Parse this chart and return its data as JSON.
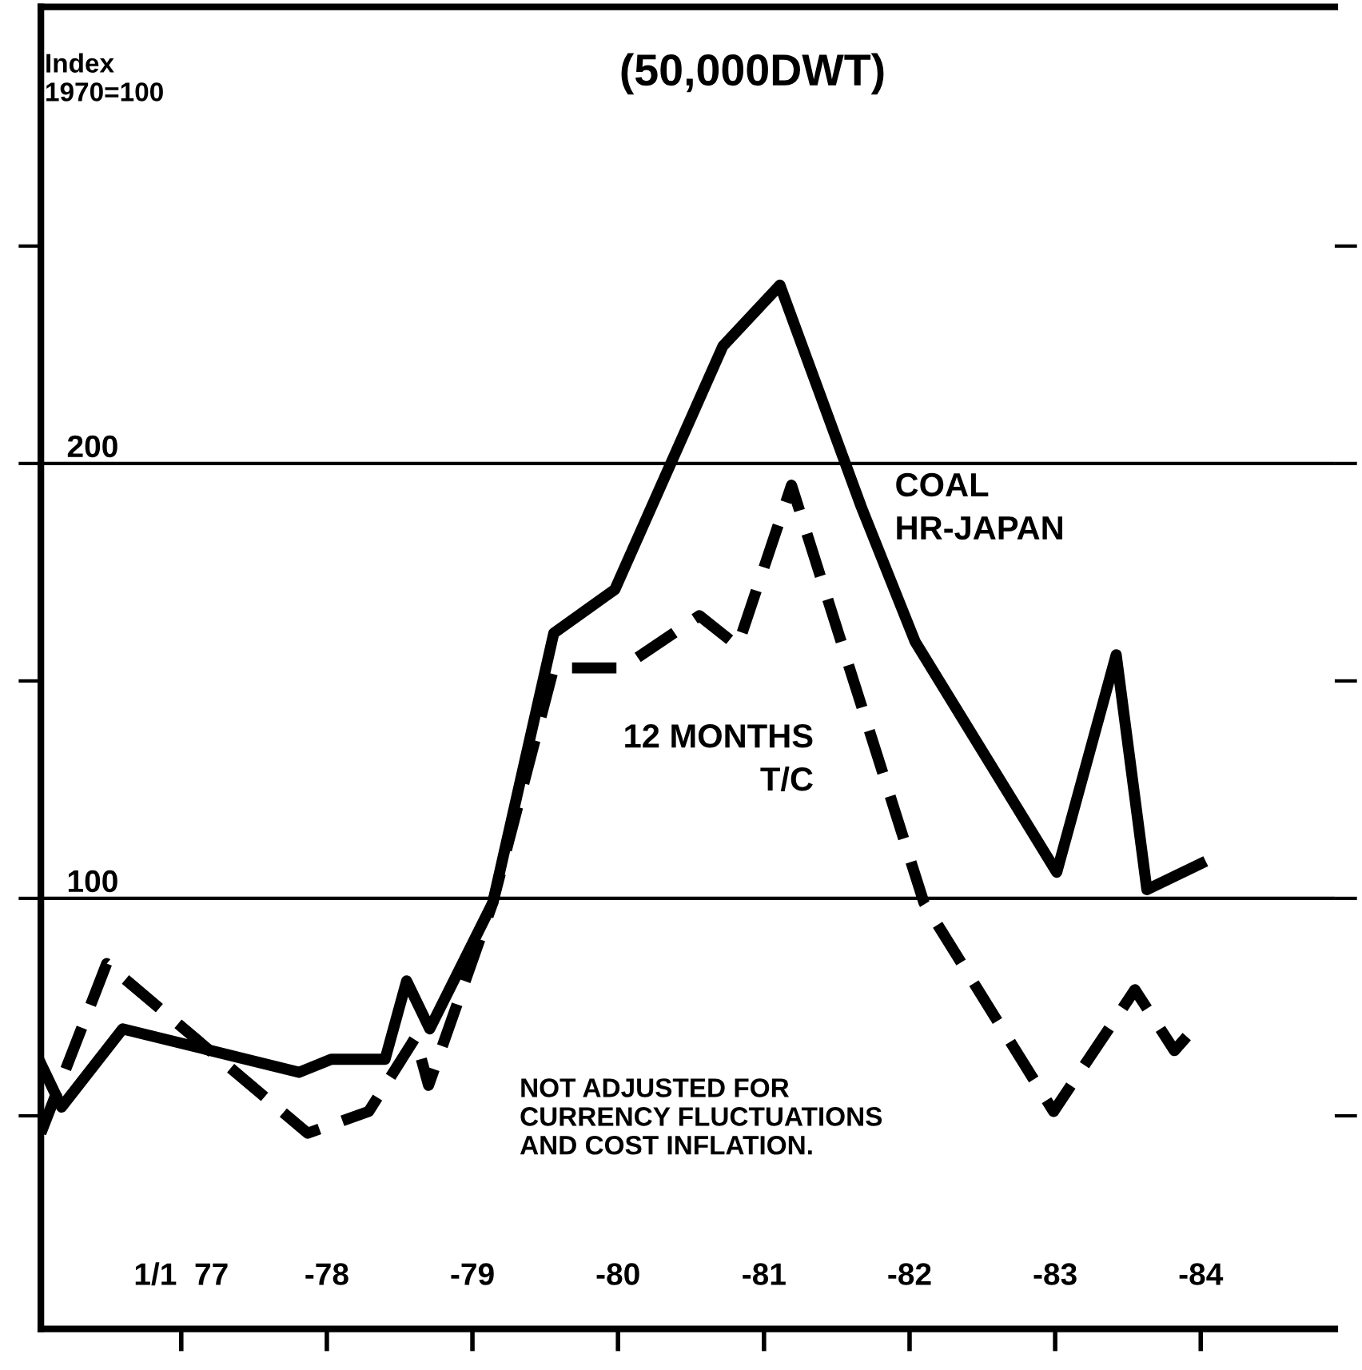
{
  "chart_data": {
    "type": "line",
    "ylabel": "Index\n1970=100",
    "annotations": [
      "(50,000DWT)",
      "NOT ADJUSTED FOR\nCURRENCY FLUCTUATIONS\nAND COST INFLATION."
    ],
    "series": [
      {
        "name": "COAL\nHR-JAPAN",
        "color": "#000000",
        "line_style": "solid",
        "x": [
          "1976-01-15",
          "1976-03-07",
          "1976-08-07",
          "1977-10-23",
          "1978-01-12",
          "1978-05-27",
          "1978-07-20",
          "1978-09-16",
          "1979-02-21",
          "1979-07-24",
          "1979-12-24",
          "1980-09-20",
          "1981-02-10",
          "1981-09-02",
          "1982-01-15",
          "1983-01-05",
          "1983-06-03",
          "1983-08-19",
          "1984-01-01"
        ],
        "values": [
          62,
          52,
          70,
          60,
          63,
          63,
          81,
          70,
          99,
          161,
          171,
          227,
          241,
          190,
          159,
          106,
          156,
          102,
          108
        ]
      },
      {
        "name": "12 MONTHS\nT/C",
        "color": "#000000",
        "line_style": "dashed",
        "x": [
          "1976-01-15",
          "1976-06-28",
          "1977-11-14",
          "1978-04-16",
          "1978-08-11",
          "1978-09-13",
          "1979-02-21",
          "1979-07-24",
          "1980-01-12",
          "1980-07-23",
          "1980-10-27",
          "1981-03-11",
          "1982-02-06",
          "1982-12-28",
          "1983-07-20",
          "1983-10-27",
          "1983-12-24"
        ],
        "values": [
          46,
          85,
          46,
          51,
          68,
          57,
          99,
          153,
          153,
          165,
          158,
          195,
          99,
          51,
          79,
          65,
          71
        ]
      }
    ],
    "xlim": [
      "1976-01-15",
      "1984-12-02"
    ],
    "ylim": [
      1,
      305
    ],
    "xticks": [
      {
        "value": "1977-01-01",
        "label": "1/1  77"
      },
      {
        "value": "1978-01-01",
        "label": "-78"
      },
      {
        "value": "1979-01-01",
        "label": "-79"
      },
      {
        "value": "1980-01-01",
        "label": "-80"
      },
      {
        "value": "1981-01-01",
        "label": "-81"
      },
      {
        "value": "1982-01-01",
        "label": "-82"
      },
      {
        "value": "1983-01-01",
        "label": "-83"
      },
      {
        "value": "1984-01-01",
        "label": "-84"
      }
    ],
    "yticks": [
      {
        "value": 50,
        "label": null
      },
      100,
      {
        "value": 150,
        "label": null
      },
      200,
      {
        "value": 250,
        "label": null
      }
    ],
    "ref_lines": [
      {
        "axis": "y",
        "value": 100,
        "label": null,
        "color": "#000000"
      },
      {
        "axis": "y",
        "value": 200,
        "label": null,
        "color": "#000000"
      }
    ]
  }
}
